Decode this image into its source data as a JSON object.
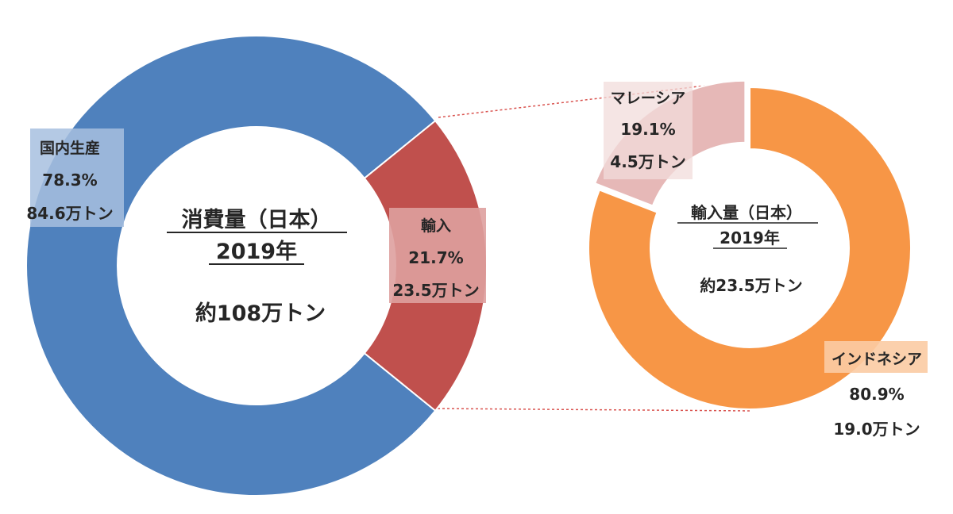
{
  "chart_data": [
    {
      "type": "donut",
      "title": "消費量（日本）",
      "subtitle": "2019年",
      "total_label": "約108万トン",
      "slices": [
        {
          "label": "国内生産",
          "percent_text": "78.3%",
          "amount_text": "84.6万トン",
          "value": 78.3,
          "color": "#4F81BD"
        },
        {
          "label": "輸入",
          "percent_text": "21.7%",
          "amount_text": "23.5万トン",
          "value": 21.7,
          "color": "#C0504D"
        }
      ]
    },
    {
      "type": "donut",
      "title": "輸入量（日本）",
      "subtitle": "2019年",
      "total_label": "約23.5万トン",
      "slices": [
        {
          "label": "インドネシア",
          "percent_text": "80.9%",
          "amount_text": "19.0万トン",
          "value": 80.9,
          "color": "#F79646"
        },
        {
          "label": "マレーシア",
          "percent_text": "19.1%",
          "amount_text": "4.5万トン",
          "value": 19.1,
          "color": "#E6B8B7"
        }
      ]
    }
  ],
  "colors": {
    "label_box_blue": "#A7C0DF",
    "label_box_red": "#DEA09F",
    "label_box_orange": "#FBCBA3",
    "label_box_pink": "#F1DCDB",
    "connector": "#D9534F",
    "text": "#262626"
  }
}
